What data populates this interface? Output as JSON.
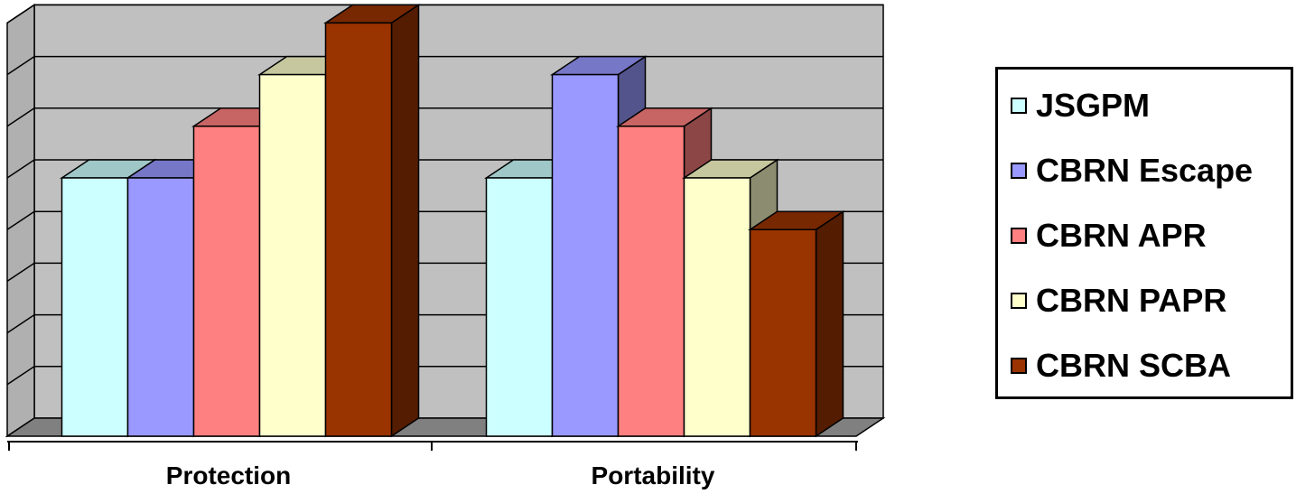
{
  "chart_data": {
    "type": "bar",
    "variant": "3d-clustered-column",
    "title": "",
    "xlabel": "",
    "ylabel": "",
    "categories": [
      "Protection",
      "Portability"
    ],
    "ylim": [
      0,
      8
    ],
    "y_tick_labels_shown": false,
    "gridlines": true,
    "legend": "right",
    "series": [
      {
        "name": "JSGPM",
        "values": [
          5,
          5
        ],
        "color": "#CCFFFF"
      },
      {
        "name": "CBRN Escape",
        "values": [
          5,
          7
        ],
        "color": "#9999FF"
      },
      {
        "name": "CBRN APR",
        "values": [
          6,
          6
        ],
        "color": "#FF8080"
      },
      {
        "name": "CBRN PAPR",
        "values": [
          7,
          5
        ],
        "color": "#FFFFCC"
      },
      {
        "name": "CBRN SCBA",
        "values": [
          8,
          4
        ],
        "color": "#993300"
      }
    ],
    "wall_color": "#C0C0C0",
    "floor_color": "#808080"
  }
}
